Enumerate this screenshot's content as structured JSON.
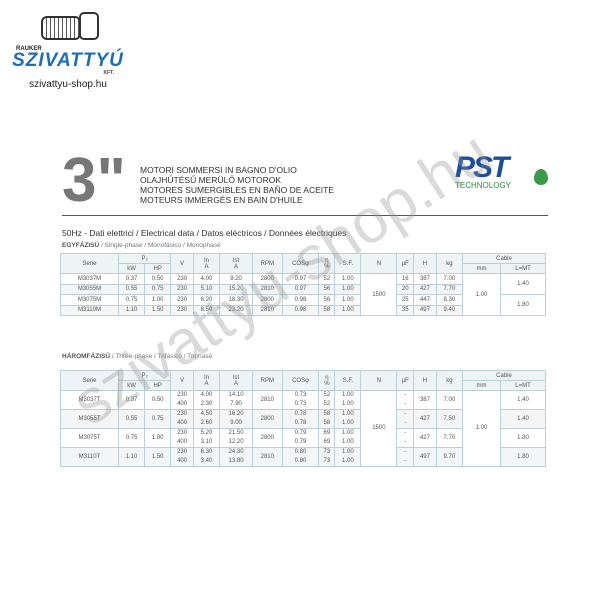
{
  "logo": {
    "small": "RAUKER",
    "brand": "SZIVATTYÚ",
    "kft": "KFT.",
    "site": "szivattyu-shop.hu"
  },
  "header": {
    "size": "3\"",
    "lines": [
      "MOTORI SOMMERSI IN BAGNO D'OLIO",
      "OLAJHŰTÉSŰ MERÜLŐ MOTOROK",
      "MOTORES SUMERGIBLES EN BAÑO DE ACEITE",
      "MOTEURS IMMERGÉS EN BAIN D'HUILE"
    ],
    "pst": "PST",
    "pst_tech": "TECHNOLOGY"
  },
  "section_title": "50Hz - Dati elettrici / Electrical data / Datos eléctricos / Données électriques",
  "single": {
    "label_hu": "EGYFÁZISÚ",
    "label_rest": " / Single-phase / Monofásico / Monophasé"
  },
  "three": {
    "label_hu": "HÁROMFÁZISÚ",
    "label_rest": " / Three-phase / Trifásico / Triphasé"
  },
  "headers": {
    "serie": "Serie",
    "p2": "P₂",
    "kw": "kW",
    "hp": "HP",
    "v": "V",
    "in": "In",
    "in_u": "A",
    "ist": "Ist",
    "ist_u": "A",
    "rpm": "RPM",
    "cos": "COSφ",
    "eta": "η",
    "eta_u": "%",
    "sf": "S.F.",
    "n": "N",
    "uf": "µF",
    "h": "H",
    "kg": "kg",
    "cable": "Cable",
    "mm": "mm",
    "lmt": "L=MT"
  },
  "single_rows": [
    {
      "serie": "M3037M",
      "kw": "0.37",
      "hp": "0.50",
      "v": "230",
      "in": "4.00",
      "ist": "9.20",
      "rpm": "2800",
      "cos": "0.97",
      "eta": "52",
      "sf": "1.00",
      "uf": "16",
      "h": "387",
      "kg": "7.00"
    },
    {
      "serie": "M3055M",
      "kw": "0.55",
      "hp": "0.75",
      "v": "230",
      "in": "5.10",
      "ist": "15.20",
      "rpm": "2810",
      "cos": "0.97",
      "eta": "56",
      "sf": "1.00",
      "uf": "20",
      "h": "427",
      "kg": "7.70"
    },
    {
      "serie": "M3075M",
      "kw": "0.75",
      "hp": "1.00",
      "v": "230",
      "in": "6.20",
      "ist": "18.30",
      "rpm": "2800",
      "cos": "0.98",
      "eta": "56",
      "sf": "1.00",
      "uf": "25",
      "h": "447",
      "kg": "8.30"
    },
    {
      "serie": "M3110M",
      "kw": "1.10",
      "hp": "1.50",
      "v": "230",
      "in": "8.50",
      "ist": "23.20",
      "rpm": "2810",
      "cos": "0.98",
      "eta": "58",
      "sf": "1.00",
      "uf": "35",
      "h": "497",
      "kg": "9.40"
    }
  ],
  "single_common": {
    "n": "1500",
    "mm": "1.00",
    "lmt": [
      "1.40",
      "1.80"
    ]
  },
  "three_rows": [
    {
      "serie": "M3037T",
      "kw": "0.37",
      "hp": "0.50",
      "v": [
        "230",
        "400"
      ],
      "in": [
        "4.00",
        "2.30"
      ],
      "ist": [
        "14.10",
        "7.90"
      ],
      "rpm": "2810",
      "cos": [
        "0.73",
        "0.73"
      ],
      "eta": [
        "52",
        "52"
      ],
      "sf": [
        "1.00",
        "1.00"
      ],
      "uf": [
        "-",
        "-"
      ],
      "h": "387",
      "kg": "7.00",
      "lmt": "1.40"
    },
    {
      "serie": "M3055T",
      "kw": "0.55",
      "hp": "0.75",
      "v": [
        "230",
        "400"
      ],
      "in": [
        "4.50",
        "2.60"
      ],
      "ist": [
        "16.20",
        "9.00"
      ],
      "rpm": "2800",
      "cos": [
        "0.78",
        "0.78"
      ],
      "eta": [
        "58",
        "58"
      ],
      "sf": [
        "1.00",
        "1.00"
      ],
      "uf": [
        "-",
        "-"
      ],
      "h": "427",
      "kg": "7.50",
      "lmt": "1.40"
    },
    {
      "serie": "M3075T",
      "kw": "0.75",
      "hp": "1.00",
      "v": [
        "230",
        "400"
      ],
      "in": [
        "5.20",
        "3.10"
      ],
      "ist": [
        "21.50",
        "12.20"
      ],
      "rpm": "2800",
      "cos": [
        "0.79",
        "0.79"
      ],
      "eta": [
        "69",
        "69"
      ],
      "sf": [
        "1.00",
        "1.00"
      ],
      "uf": [
        "-",
        "-"
      ],
      "h": "427",
      "kg": "7.70",
      "lmt": "1.80"
    },
    {
      "serie": "M3110T",
      "kw": "1.10",
      "hp": "1.50",
      "v": [
        "230",
        "400"
      ],
      "in": [
        "6.30",
        "3.40"
      ],
      "ist": [
        "24.30",
        "13.80"
      ],
      "rpm": "2810",
      "cos": [
        "0.80",
        "0.80"
      ],
      "eta": [
        "73",
        "73"
      ],
      "sf": [
        "1.00",
        "1.00"
      ],
      "uf": [
        "-",
        "-"
      ],
      "h": "497",
      "kg": "9.70",
      "lmt": "1.80"
    }
  ],
  "three_common": {
    "n": "1500",
    "mm": "1.00"
  },
  "watermark": "szivattyu-shop.hu"
}
